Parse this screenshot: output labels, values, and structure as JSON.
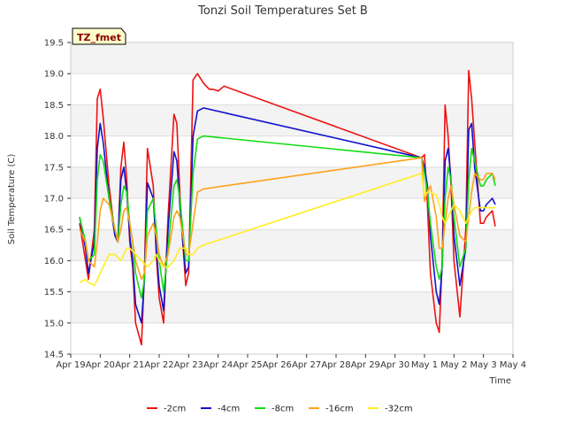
{
  "chart_data": {
    "type": "line",
    "title": "Tonzi Soil Temperatures Set B",
    "xlabel": "Time",
    "ylabel": "Soil Temperature (C)",
    "ylim": [
      14.5,
      19.5
    ],
    "xlim": [
      0,
      15
    ],
    "yticks": [
      14.5,
      15.0,
      15.5,
      16.0,
      16.5,
      17.0,
      17.5,
      18.0,
      18.5,
      19.0,
      19.5
    ],
    "ytick_labels": [
      "14.5",
      "15.0",
      "15.5",
      "16.0",
      "16.5",
      "17.0",
      "17.5",
      "18.0",
      "18.5",
      "19.0",
      "19.5"
    ],
    "xticks": [
      0,
      1,
      2,
      3,
      4,
      5,
      6,
      7,
      8,
      9,
      10,
      11,
      12,
      13,
      14,
      15
    ],
    "xtick_labels": [
      "Apr 19",
      "Apr 20",
      "Apr 21",
      "Apr 22",
      "Apr 23",
      "Apr 24",
      "Apr 25",
      "Apr 26",
      "Apr 27",
      "Apr 28",
      "Apr 29",
      "Apr 30",
      "May 1",
      "May 2",
      "May 3",
      "May 4"
    ],
    "grid": true,
    "badge": "TZ_fmet",
    "legend_position": "bottom",
    "series": [
      {
        "name": "-2cm",
        "color": "#ee1111",
        "x": [
          0.3,
          0.5,
          0.6,
          0.8,
          0.9,
          1.0,
          1.1,
          1.3,
          1.5,
          1.6,
          1.7,
          1.8,
          1.9,
          2.0,
          2.1,
          2.2,
          2.4,
          2.5,
          2.6,
          2.8,
          2.9,
          3.0,
          3.15,
          3.3,
          3.5,
          3.6,
          3.7,
          3.8,
          3.9,
          4.0,
          4.15,
          4.3,
          4.5,
          4.6,
          4.7,
          4.8,
          4.9,
          5.0,
          5.2,
          11.9,
          12.0,
          12.1,
          12.2,
          12.4,
          12.5,
          12.6,
          12.7,
          12.8,
          12.9,
          13.0,
          13.2,
          13.4,
          13.5,
          13.6,
          13.7,
          13.9,
          14.0,
          14.1,
          14.3,
          14.4
        ],
        "y": [
          16.6,
          16.0,
          15.7,
          16.5,
          18.6,
          18.75,
          18.3,
          17.2,
          16.4,
          16.3,
          17.5,
          17.9,
          17.3,
          16.3,
          15.9,
          15.0,
          14.65,
          15.8,
          17.8,
          17.2,
          16.1,
          15.4,
          15.0,
          16.7,
          18.35,
          18.2,
          17.1,
          16.3,
          15.6,
          15.8,
          18.9,
          19.0,
          18.85,
          18.8,
          18.75,
          18.75,
          18.74,
          18.72,
          18.8,
          17.65,
          17.7,
          16.9,
          15.8,
          15.0,
          14.85,
          16.0,
          18.5,
          18.0,
          17.2,
          16.0,
          15.1,
          16.5,
          19.05,
          18.6,
          17.9,
          16.6,
          16.6,
          16.7,
          16.8,
          16.55
        ]
      },
      {
        "name": "-4cm",
        "color": "#1111cc",
        "x": [
          0.3,
          0.5,
          0.6,
          0.8,
          0.9,
          1.0,
          1.1,
          1.3,
          1.5,
          1.6,
          1.7,
          1.8,
          1.9,
          2.0,
          2.1,
          2.2,
          2.4,
          2.5,
          2.6,
          2.8,
          2.9,
          3.0,
          3.15,
          3.3,
          3.5,
          3.6,
          3.7,
          3.8,
          3.9,
          4.0,
          4.15,
          4.3,
          4.5,
          11.9,
          12.0,
          12.1,
          12.2,
          12.4,
          12.5,
          12.6,
          12.7,
          12.8,
          12.9,
          13.0,
          13.2,
          13.4,
          13.5,
          13.6,
          13.7,
          13.9,
          14.0,
          14.1,
          14.3,
          14.4
        ],
        "y": [
          16.7,
          16.2,
          15.8,
          16.3,
          17.8,
          18.2,
          17.9,
          17.0,
          16.4,
          16.3,
          17.3,
          17.5,
          17.1,
          16.4,
          16.0,
          15.3,
          15.0,
          15.7,
          17.25,
          17.0,
          16.2,
          15.6,
          15.2,
          16.5,
          17.75,
          17.6,
          16.9,
          16.3,
          15.8,
          15.9,
          18.0,
          18.4,
          18.45,
          17.65,
          17.5,
          17.2,
          16.4,
          15.5,
          15.3,
          15.9,
          17.6,
          17.8,
          17.3,
          16.4,
          15.6,
          16.2,
          18.1,
          18.2,
          17.5,
          16.8,
          16.8,
          16.9,
          17.0,
          16.9
        ]
      },
      {
        "name": "-8cm",
        "color": "#11dd11",
        "x": [
          0.3,
          0.5,
          0.6,
          0.8,
          0.9,
          1.0,
          1.1,
          1.3,
          1.5,
          1.6,
          1.7,
          1.8,
          1.9,
          2.0,
          2.1,
          2.2,
          2.4,
          2.5,
          2.6,
          2.8,
          2.9,
          3.0,
          3.15,
          3.3,
          3.5,
          3.6,
          3.7,
          3.8,
          3.9,
          4.0,
          4.15,
          4.3,
          4.5,
          11.9,
          12.0,
          12.1,
          12.2,
          12.4,
          12.5,
          12.6,
          12.7,
          12.8,
          12.9,
          13.0,
          13.2,
          13.4,
          13.5,
          13.6,
          13.7,
          13.9,
          14.0,
          14.1,
          14.3,
          14.4
        ],
        "y": [
          16.7,
          16.3,
          16.0,
          16.1,
          17.3,
          17.7,
          17.6,
          17.0,
          16.5,
          16.3,
          16.9,
          17.2,
          17.1,
          16.6,
          16.3,
          15.8,
          15.4,
          15.7,
          16.8,
          17.0,
          16.5,
          16.0,
          15.5,
          16.2,
          17.2,
          17.3,
          17.0,
          16.5,
          16.0,
          16.0,
          17.4,
          17.95,
          18.0,
          17.65,
          17.4,
          17.1,
          16.6,
          15.9,
          15.7,
          15.9,
          17.0,
          17.5,
          17.3,
          16.7,
          15.9,
          16.2,
          17.3,
          17.8,
          17.6,
          17.2,
          17.2,
          17.3,
          17.4,
          17.2
        ]
      },
      {
        "name": "-16cm",
        "color": "#ffa11a",
        "x": [
          0.3,
          0.5,
          0.6,
          0.8,
          0.9,
          1.0,
          1.1,
          1.3,
          1.5,
          1.6,
          1.7,
          1.8,
          1.9,
          2.0,
          2.1,
          2.2,
          2.4,
          2.5,
          2.6,
          2.8,
          2.9,
          3.0,
          3.15,
          3.3,
          3.5,
          3.6,
          3.7,
          3.8,
          3.9,
          4.0,
          4.15,
          4.3,
          4.5,
          11.9,
          12.0,
          12.1,
          12.2,
          12.4,
          12.5,
          12.6,
          12.7,
          12.8,
          12.9,
          13.0,
          13.2,
          13.4,
          13.5,
          13.6,
          13.7,
          13.9,
          14.0,
          14.1,
          14.3,
          14.4
        ],
        "y": [
          16.5,
          16.3,
          16.0,
          15.9,
          16.3,
          16.8,
          17.0,
          16.9,
          16.5,
          16.3,
          16.5,
          16.8,
          16.85,
          16.6,
          16.3,
          16.0,
          15.7,
          15.8,
          16.4,
          16.6,
          16.4,
          16.1,
          15.9,
          16.1,
          16.7,
          16.8,
          16.7,
          16.4,
          16.1,
          16.1,
          16.6,
          17.1,
          17.15,
          17.65,
          16.95,
          17.1,
          17.2,
          16.7,
          16.2,
          16.2,
          16.6,
          17.0,
          17.2,
          16.9,
          16.4,
          16.3,
          16.7,
          17.1,
          17.4,
          17.3,
          17.3,
          17.4,
          17.4,
          17.3
        ]
      },
      {
        "name": "-32cm",
        "color": "#ffee22",
        "x": [
          0.3,
          0.5,
          0.6,
          0.8,
          0.9,
          1.0,
          1.1,
          1.3,
          1.5,
          1.6,
          1.7,
          1.8,
          1.9,
          2.0,
          2.1,
          2.2,
          2.4,
          2.5,
          2.6,
          2.8,
          2.9,
          3.0,
          3.15,
          3.3,
          3.5,
          3.6,
          3.7,
          3.8,
          3.9,
          4.0,
          4.15,
          4.3,
          4.5,
          11.9,
          12.0,
          12.1,
          12.2,
          12.4,
          12.5,
          12.6,
          12.7,
          12.8,
          12.9,
          13.0,
          13.2,
          13.4,
          13.5,
          13.6,
          13.7,
          13.9,
          14.0,
          14.1,
          14.3,
          14.4
        ],
        "y": [
          15.65,
          15.7,
          15.65,
          15.6,
          15.7,
          15.8,
          15.9,
          16.1,
          16.1,
          16.05,
          16.0,
          16.1,
          16.2,
          16.2,
          16.15,
          16.1,
          16.0,
          15.95,
          15.9,
          16.0,
          16.1,
          16.0,
          15.9,
          15.9,
          16.0,
          16.1,
          16.2,
          16.2,
          16.2,
          16.1,
          16.1,
          16.2,
          16.25,
          17.4,
          17.05,
          17.1,
          17.1,
          17.05,
          16.9,
          16.7,
          16.6,
          16.7,
          16.8,
          16.9,
          16.8,
          16.6,
          16.7,
          16.8,
          16.85,
          16.85,
          16.85,
          16.85,
          16.85,
          16.85
        ]
      }
    ]
  }
}
